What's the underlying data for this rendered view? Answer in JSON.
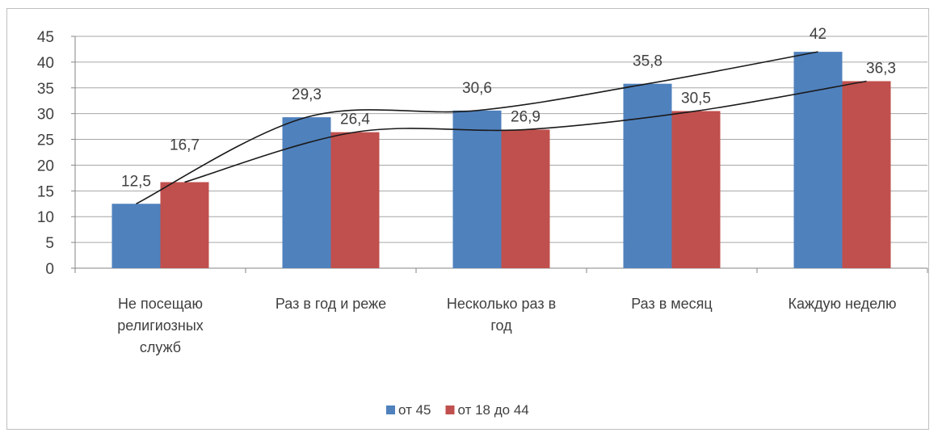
{
  "chart_data": {
    "type": "bar",
    "categories": [
      [
        "Не посещаю",
        "религиозных",
        "служб"
      ],
      [
        "Раз в год и реже"
      ],
      [
        "Несколько раз в",
        "год"
      ],
      [
        "Раз в месяц"
      ],
      [
        "Каждую неделю"
      ]
    ],
    "series": [
      {
        "name": "от 45",
        "color": "#4f81bd",
        "values": [
          12.5,
          29.3,
          30.6,
          35.8,
          42
        ],
        "labels": [
          "12,5",
          "29,3",
          "30,6",
          "35,8",
          "42"
        ]
      },
      {
        "name": "от 18 до 44",
        "color": "#c0504d",
        "values": [
          16.7,
          26.4,
          26.9,
          30.5,
          36.3
        ],
        "labels": [
          "16,7",
          "26,4",
          "26,9",
          "30,5",
          "36,3"
        ]
      }
    ],
    "trendlines": true,
    "ylim": [
      0,
      45
    ],
    "yticks": [
      "0",
      "5",
      "10",
      "15",
      "20",
      "25",
      "30",
      "35",
      "40",
      "45"
    ],
    "grid": true,
    "legend_position": "bottom"
  }
}
